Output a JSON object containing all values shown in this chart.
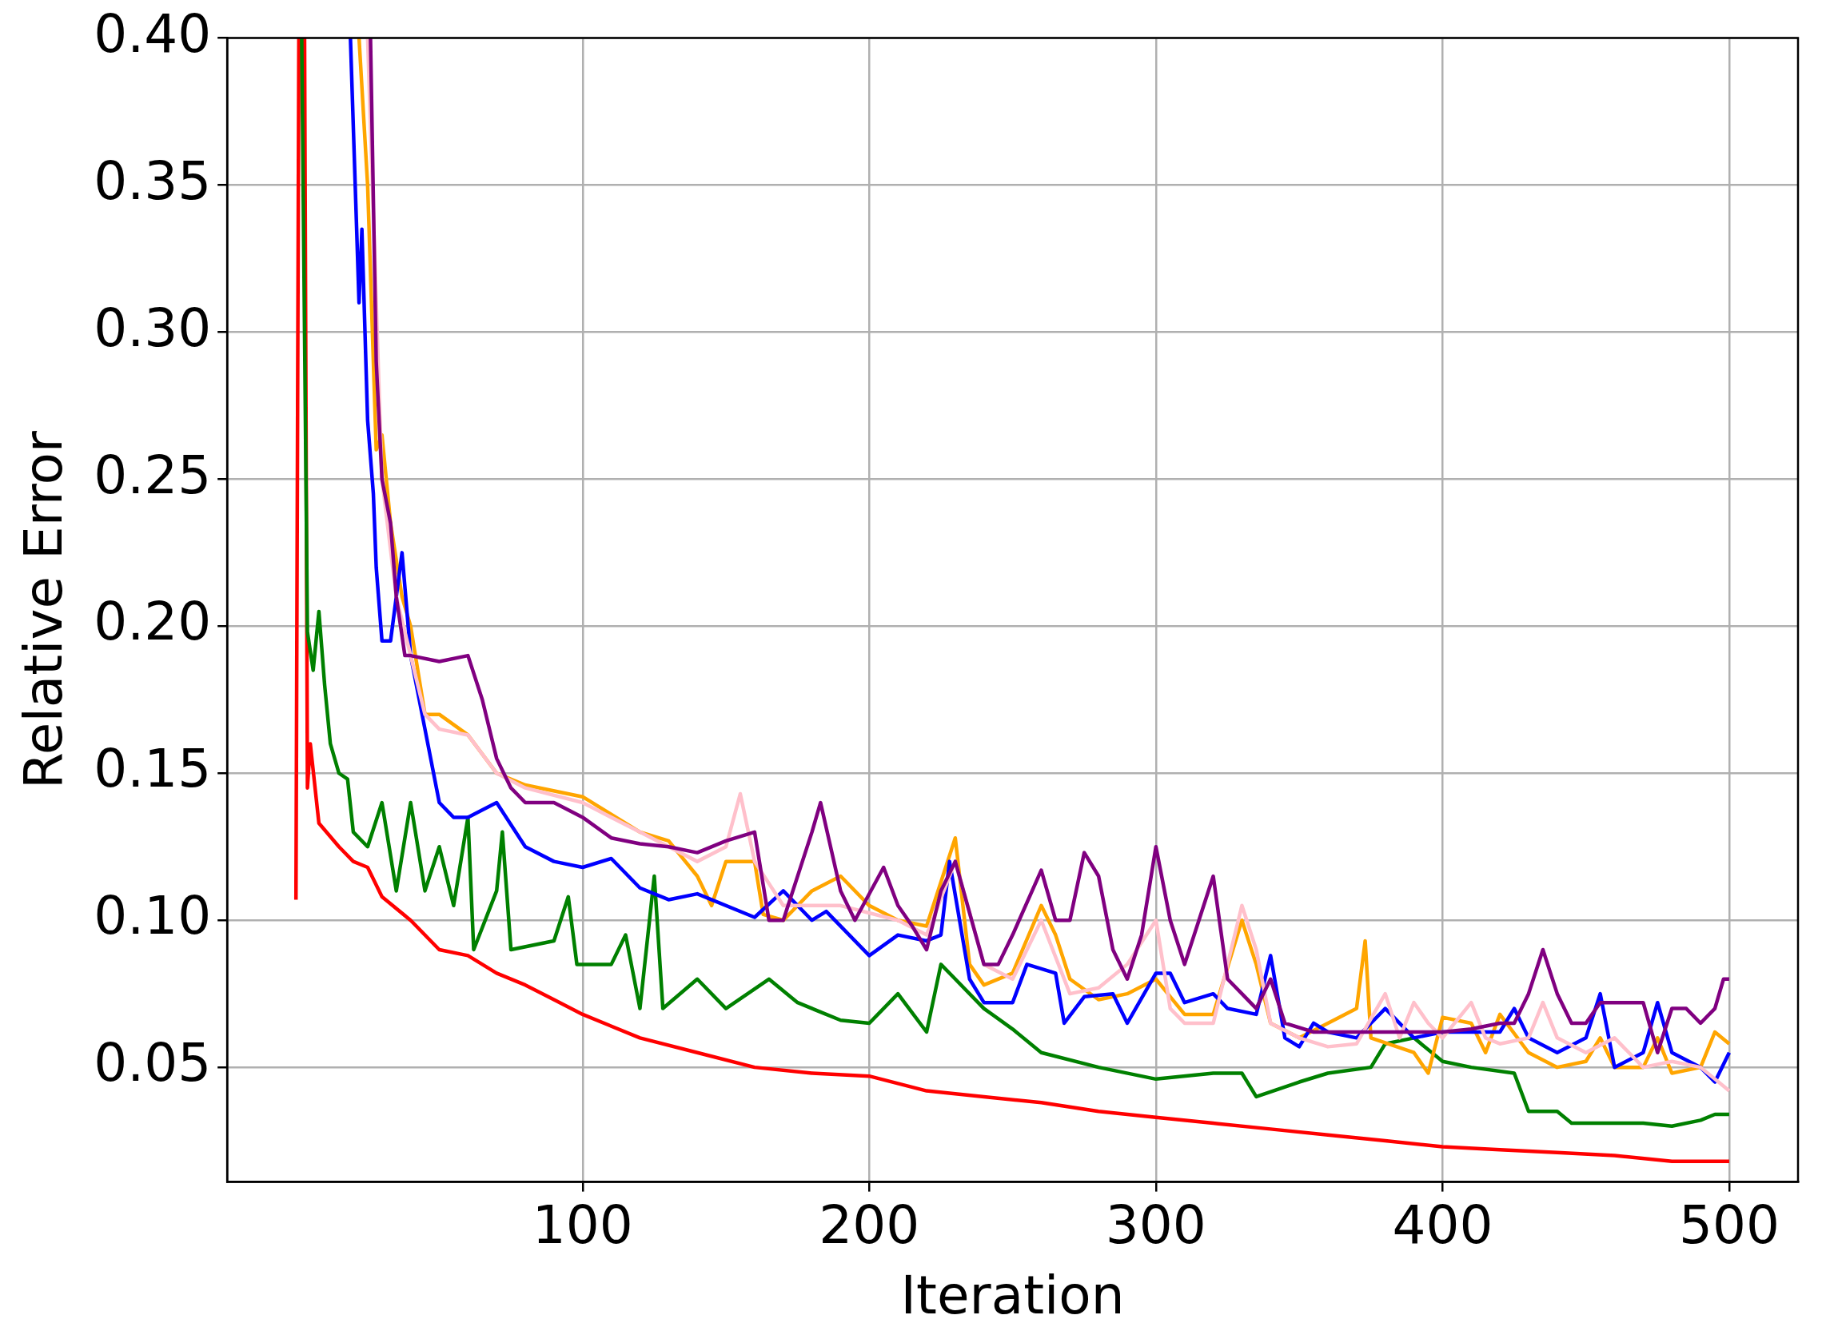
{
  "chart_data": {
    "type": "line",
    "xlabel": "Iteration",
    "ylabel": "Relative Error",
    "xlim": [
      -24,
      524
    ],
    "ylim": [
      0.011,
      0.4
    ],
    "xticks": [
      100,
      200,
      300,
      400,
      500
    ],
    "yticks": [
      {
        "value": 0.05,
        "label": "0.05"
      },
      {
        "value": 0.1,
        "label": "0.10"
      },
      {
        "value": 0.15,
        "label": "0.15"
      },
      {
        "value": 0.2,
        "label": "0.20"
      },
      {
        "value": 0.25,
        "label": "0.25"
      },
      {
        "value": 0.3,
        "label": "0.30"
      },
      {
        "value": 0.35,
        "label": "0.35"
      },
      {
        "value": 0.4,
        "label": "0.40"
      }
    ],
    "grid": true,
    "legend": false,
    "marker": "none",
    "line_style": "solid",
    "series": [
      {
        "color": "#800080",
        "x": [
          26,
          28,
          30,
          33,
          35,
          38,
          40,
          50,
          60,
          65,
          70,
          75,
          80,
          90,
          100,
          110,
          120,
          130,
          140,
          150,
          160,
          165,
          170,
          180,
          183,
          190,
          195,
          205,
          210,
          215,
          220,
          225,
          230,
          240,
          245,
          250,
          260,
          265,
          270,
          275,
          280,
          285,
          290,
          295,
          300,
          305,
          310,
          315,
          320,
          325,
          330,
          335,
          340,
          345,
          355,
          370,
          380,
          400,
          410,
          420,
          425,
          430,
          435,
          440,
          445,
          450,
          455,
          470,
          475,
          480,
          485,
          490,
          495,
          498,
          500
        ],
        "values": [
          0.4,
          0.29,
          0.25,
          0.235,
          0.21,
          0.19,
          0.19,
          0.188,
          0.19,
          0.175,
          0.155,
          0.145,
          0.14,
          0.14,
          0.135,
          0.128,
          0.126,
          0.125,
          0.123,
          0.127,
          0.13,
          0.1,
          0.1,
          0.13,
          0.14,
          0.11,
          0.1,
          0.118,
          0.105,
          0.098,
          0.09,
          0.11,
          0.12,
          0.085,
          0.085,
          0.095,
          0.117,
          0.1,
          0.1,
          0.123,
          0.115,
          0.09,
          0.08,
          0.095,
          0.125,
          0.1,
          0.085,
          0.1,
          0.115,
          0.08,
          0.075,
          0.07,
          0.08,
          0.065,
          0.062,
          0.062,
          0.062,
          0.062,
          0.063,
          0.065,
          0.065,
          0.075,
          0.09,
          0.075,
          0.065,
          0.065,
          0.072,
          0.072,
          0.055,
          0.07,
          0.07,
          0.065,
          0.07,
          0.08,
          0.08
        ]
      },
      {
        "color": "#ffc0cb",
        "x": [
          25,
          30,
          35,
          40,
          45,
          50,
          60,
          70,
          80,
          100,
          120,
          140,
          150,
          155,
          160,
          170,
          190,
          210,
          220,
          230,
          240,
          250,
          260,
          270,
          280,
          290,
          300,
          305,
          310,
          320,
          330,
          335,
          340,
          350,
          360,
          370,
          380,
          385,
          390,
          395,
          400,
          410,
          415,
          420,
          430,
          435,
          440,
          450,
          460,
          470,
          480,
          490,
          500
        ],
        "values": [
          0.4,
          0.25,
          0.21,
          0.19,
          0.17,
          0.165,
          0.163,
          0.15,
          0.145,
          0.14,
          0.13,
          0.12,
          0.125,
          0.143,
          0.12,
          0.105,
          0.105,
          0.1,
          0.095,
          0.12,
          0.085,
          0.08,
          0.1,
          0.075,
          0.077,
          0.085,
          0.1,
          0.07,
          0.065,
          0.065,
          0.105,
          0.09,
          0.065,
          0.06,
          0.057,
          0.058,
          0.075,
          0.06,
          0.072,
          0.065,
          0.06,
          0.072,
          0.06,
          0.058,
          0.06,
          0.072,
          0.06,
          0.055,
          0.06,
          0.05,
          0.052,
          0.05,
          0.042
        ]
      },
      {
        "color": "#0000ff",
        "x": [
          19,
          22,
          23,
          25,
          27,
          28,
          30,
          33,
          35,
          37,
          40,
          45,
          50,
          55,
          60,
          70,
          80,
          90,
          100,
          110,
          120,
          130,
          140,
          160,
          170,
          180,
          185,
          200,
          210,
          220,
          225,
          228,
          235,
          240,
          250,
          255,
          265,
          268,
          275,
          285,
          290,
          300,
          305,
          310,
          320,
          325,
          335,
          340,
          345,
          350,
          355,
          360,
          370,
          375,
          380,
          390,
          400,
          420,
          425,
          430,
          440,
          450,
          455,
          460,
          470,
          475,
          480,
          490,
          495,
          500
        ],
        "values": [
          0.4,
          0.31,
          0.335,
          0.27,
          0.245,
          0.22,
          0.195,
          0.195,
          0.21,
          0.225,
          0.19,
          0.165,
          0.14,
          0.135,
          0.135,
          0.14,
          0.125,
          0.12,
          0.118,
          0.121,
          0.111,
          0.107,
          0.109,
          0.101,
          0.11,
          0.1,
          0.103,
          0.088,
          0.095,
          0.093,
          0.095,
          0.12,
          0.08,
          0.072,
          0.072,
          0.085,
          0.082,
          0.065,
          0.074,
          0.075,
          0.065,
          0.082,
          0.082,
          0.072,
          0.075,
          0.07,
          0.068,
          0.088,
          0.06,
          0.057,
          0.065,
          0.062,
          0.06,
          0.065,
          0.07,
          0.06,
          0.062,
          0.062,
          0.07,
          0.06,
          0.055,
          0.06,
          0.075,
          0.05,
          0.055,
          0.072,
          0.055,
          0.05,
          0.045,
          0.055
        ]
      },
      {
        "color": "#ffa500",
        "x": [
          22,
          25,
          28,
          30,
          33,
          37,
          40,
          45,
          50,
          60,
          70,
          80,
          100,
          120,
          130,
          140,
          145,
          150,
          160,
          163,
          170,
          180,
          190,
          200,
          210,
          220,
          230,
          235,
          240,
          250,
          260,
          265,
          270,
          280,
          290,
          300,
          305,
          310,
          320,
          330,
          335,
          340,
          350,
          360,
          370,
          373,
          375,
          390,
          395,
          400,
          410,
          415,
          420,
          430,
          440,
          450,
          455,
          460,
          470,
          475,
          480,
          490,
          495,
          500
        ],
        "values": [
          0.4,
          0.35,
          0.26,
          0.265,
          0.235,
          0.21,
          0.2,
          0.17,
          0.17,
          0.163,
          0.15,
          0.146,
          0.142,
          0.13,
          0.127,
          0.115,
          0.105,
          0.12,
          0.12,
          0.102,
          0.1,
          0.11,
          0.115,
          0.105,
          0.1,
          0.098,
          0.128,
          0.085,
          0.078,
          0.082,
          0.105,
          0.095,
          0.08,
          0.073,
          0.075,
          0.08,
          0.074,
          0.068,
          0.068,
          0.1,
          0.085,
          0.065,
          0.06,
          0.065,
          0.07,
          0.093,
          0.06,
          0.055,
          0.048,
          0.067,
          0.065,
          0.055,
          0.068,
          0.055,
          0.05,
          0.052,
          0.06,
          0.05,
          0.05,
          0.06,
          0.048,
          0.05,
          0.062,
          0.058
        ]
      },
      {
        "color": "#008000",
        "x": [
          2,
          4,
          6,
          8,
          10,
          12,
          15,
          18,
          20,
          25,
          30,
          35,
          40,
          45,
          50,
          55,
          60,
          62,
          70,
          72,
          75,
          90,
          95,
          98,
          110,
          115,
          120,
          125,
          128,
          140,
          150,
          165,
          175,
          190,
          200,
          210,
          220,
          225,
          230,
          240,
          250,
          260,
          280,
          300,
          320,
          330,
          335,
          350,
          360,
          375,
          380,
          390,
          400,
          410,
          425,
          430,
          440,
          445,
          470,
          480,
          490,
          495,
          500
        ],
        "values": [
          0.4,
          0.198,
          0.185,
          0.205,
          0.18,
          0.16,
          0.15,
          0.148,
          0.13,
          0.125,
          0.14,
          0.11,
          0.14,
          0.11,
          0.125,
          0.105,
          0.135,
          0.09,
          0.11,
          0.13,
          0.09,
          0.093,
          0.108,
          0.085,
          0.085,
          0.095,
          0.07,
          0.115,
          0.07,
          0.08,
          0.07,
          0.08,
          0.072,
          0.066,
          0.065,
          0.075,
          0.062,
          0.085,
          0.08,
          0.07,
          0.063,
          0.055,
          0.05,
          0.046,
          0.048,
          0.048,
          0.04,
          0.045,
          0.048,
          0.05,
          0.058,
          0.06,
          0.052,
          0.05,
          0.048,
          0.035,
          0.035,
          0.031,
          0.031,
          0.03,
          0.032,
          0.034,
          0.034
        ]
      },
      {
        "color": "#ff0000",
        "x": [
          0,
          1,
          3,
          4,
          5,
          8,
          15,
          20,
          25,
          30,
          40,
          50,
          60,
          70,
          80,
          90,
          100,
          120,
          140,
          160,
          180,
          200,
          220,
          240,
          260,
          280,
          300,
          320,
          340,
          360,
          380,
          400,
          420,
          440,
          460,
          480,
          500
        ],
        "values": [
          0.107,
          0.4,
          0.4,
          0.145,
          0.16,
          0.133,
          0.125,
          0.12,
          0.118,
          0.108,
          0.1,
          0.09,
          0.088,
          0.082,
          0.078,
          0.073,
          0.068,
          0.06,
          0.055,
          0.05,
          0.048,
          0.047,
          0.042,
          0.04,
          0.038,
          0.035,
          0.033,
          0.031,
          0.029,
          0.027,
          0.025,
          0.023,
          0.022,
          0.021,
          0.02,
          0.018,
          0.018
        ]
      }
    ]
  }
}
